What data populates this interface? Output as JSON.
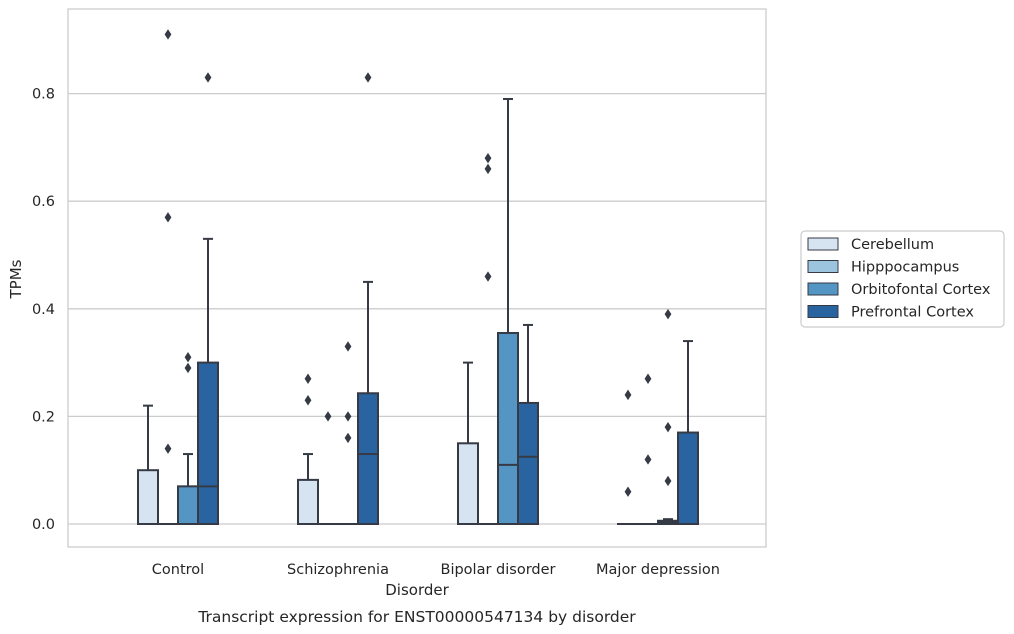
{
  "chart_data": {
    "type": "boxplot",
    "title": "",
    "caption": "Transcript expression for ENST00000547134 by disorder",
    "xlabel": "Disorder",
    "ylabel": "TPMs",
    "ylim": [
      -0.045,
      0.96
    ],
    "yticks": [
      "0.0",
      "0.2",
      "0.4",
      "0.6",
      "0.8"
    ],
    "ytick_values": [
      0.0,
      0.2,
      0.4,
      0.6,
      0.8
    ],
    "grid": "horizontal",
    "legend_position": "right",
    "categories": [
      "Control",
      "Schizophrenia",
      "Bipolar disorder",
      "Major depression"
    ],
    "series": [
      {
        "name": "Cerebellum",
        "color": "#d6e4f1",
        "boxes": [
          {
            "q1": 0.0,
            "median": 0.0,
            "q3": 0.1,
            "whisker_low": 0.0,
            "whisker_high": 0.22,
            "outliers": []
          },
          {
            "q1": 0.0,
            "median": 0.0,
            "q3": 0.082,
            "whisker_low": 0.0,
            "whisker_high": 0.13,
            "outliers": [
              0.27,
              0.23
            ]
          },
          {
            "q1": 0.0,
            "median": 0.0,
            "q3": 0.15,
            "whisker_low": 0.0,
            "whisker_high": 0.3,
            "outliers": []
          },
          {
            "q1": 0.0,
            "median": 0.0,
            "q3": 0.0,
            "whisker_low": 0.0,
            "whisker_high": 0.0,
            "outliers": [
              0.24,
              0.06
            ]
          }
        ]
      },
      {
        "name": "Hipppocampus",
        "color": "#9dc4de",
        "boxes": [
          {
            "q1": 0.0,
            "median": 0.0,
            "q3": 0.0,
            "whisker_low": 0.0,
            "whisker_high": 0.0,
            "outliers": [
              0.91,
              0.57,
              0.14
            ]
          },
          {
            "q1": 0.0,
            "median": 0.0,
            "q3": 0.0,
            "whisker_low": 0.0,
            "whisker_high": 0.0,
            "outliers": [
              0.2
            ]
          },
          {
            "q1": 0.0,
            "median": 0.0,
            "q3": 0.0,
            "whisker_low": 0.0,
            "whisker_high": 0.0,
            "outliers": [
              0.68,
              0.66,
              0.46
            ]
          },
          {
            "q1": 0.0,
            "median": 0.0,
            "q3": 0.0,
            "whisker_low": 0.0,
            "whisker_high": 0.0,
            "outliers": [
              0.27,
              0.12
            ]
          }
        ]
      },
      {
        "name": "Orbitofontal Cortex",
        "color": "#5495c4",
        "boxes": [
          {
            "q1": 0.0,
            "median": 0.0,
            "q3": 0.07,
            "whisker_low": 0.0,
            "whisker_high": 0.13,
            "outliers": [
              0.31,
              0.29
            ]
          },
          {
            "q1": 0.0,
            "median": 0.0,
            "q3": 0.0,
            "whisker_low": 0.0,
            "whisker_high": 0.0,
            "outliers": [
              0.33,
              0.2,
              0.16
            ]
          },
          {
            "q1": 0.0,
            "median": 0.11,
            "q3": 0.355,
            "whisker_low": 0.0,
            "whisker_high": 0.79,
            "outliers": []
          },
          {
            "q1": 0.0,
            "median": 0.003,
            "q3": 0.006,
            "whisker_low": 0.0,
            "whisker_high": 0.009,
            "outliers": [
              0.39,
              0.18,
              0.08
            ]
          }
        ]
      },
      {
        "name": "Prefrontal Cortex",
        "color": "#2a64a0",
        "boxes": [
          {
            "q1": 0.0,
            "median": 0.07,
            "q3": 0.3,
            "whisker_low": 0.0,
            "whisker_high": 0.53,
            "outliers": [
              0.83
            ]
          },
          {
            "q1": 0.0,
            "median": 0.13,
            "q3": 0.243,
            "whisker_low": 0.0,
            "whisker_high": 0.45,
            "outliers": [
              0.83
            ]
          },
          {
            "q1": 0.0,
            "median": 0.125,
            "q3": 0.225,
            "whisker_low": 0.0,
            "whisker_high": 0.37,
            "outliers": []
          },
          {
            "q1": 0.0,
            "median": 0.0,
            "q3": 0.17,
            "whisker_low": 0.0,
            "whisker_high": 0.34,
            "outliers": []
          }
        ]
      }
    ]
  }
}
